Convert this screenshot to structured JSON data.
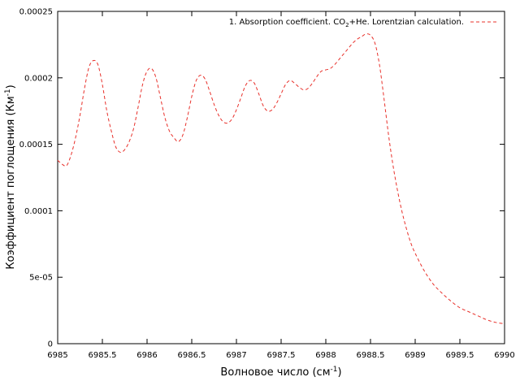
{
  "chart_data": {
    "type": "line",
    "title": "",
    "xlabel": "Волновое число (см",
    "xlabel_sup": "-1",
    "xlabel_tail": ")",
    "ylabel": "Коэффициент поглощения (Км",
    "ylabel_sup": "-1",
    "ylabel_tail": ")",
    "xlim": [
      6985,
      6990
    ],
    "ylim": [
      0,
      0.00025
    ],
    "xticks": [
      {
        "value": 6985,
        "label": "6985"
      },
      {
        "value": 6985.5,
        "label": "6985.5"
      },
      {
        "value": 6986,
        "label": "6986"
      },
      {
        "value": 6986.5,
        "label": "6986.5"
      },
      {
        "value": 6987,
        "label": "6987"
      },
      {
        "value": 6987.5,
        "label": "6987.5"
      },
      {
        "value": 6988,
        "label": "6988"
      },
      {
        "value": 6988.5,
        "label": "6988.5"
      },
      {
        "value": 6989,
        "label": "6989"
      },
      {
        "value": 6989.5,
        "label": "6989.5"
      },
      {
        "value": 6990,
        "label": "6990"
      }
    ],
    "yticks": [
      {
        "value": 0,
        "label": "0"
      },
      {
        "value": 5e-05,
        "label": "5e-05"
      },
      {
        "value": 0.0001,
        "label": "0.0001"
      },
      {
        "value": 0.00015,
        "label": "0.00015"
      },
      {
        "value": 0.0002,
        "label": "0.0002"
      },
      {
        "value": 0.00025,
        "label": "0.00025"
      }
    ],
    "grid": false,
    "legend_position": "top-right",
    "series": [
      {
        "name_prefix": "1. Absorption coefficient. CO",
        "name_sub": "2",
        "name_suffix": "+He. Lorentzian calculation.",
        "color": "#e8302a",
        "dash": "dashed",
        "x": [
          6985.0,
          6985.05,
          6985.1,
          6985.15,
          6985.2,
          6985.25,
          6985.3,
          6985.35,
          6985.4,
          6985.45,
          6985.5,
          6985.55,
          6985.6,
          6985.65,
          6985.7,
          6985.75,
          6985.8,
          6985.85,
          6985.9,
          6985.95,
          6986.0,
          6986.05,
          6986.1,
          6986.15,
          6986.2,
          6986.25,
          6986.3,
          6986.35,
          6986.4,
          6986.45,
          6986.5,
          6986.55,
          6986.6,
          6986.65,
          6986.7,
          6986.75,
          6986.8,
          6986.85,
          6986.9,
          6986.95,
          6987.0,
          6987.05,
          6987.1,
          6987.15,
          6987.2,
          6987.25,
          6987.3,
          6987.35,
          6987.4,
          6987.45,
          6987.5,
          6987.55,
          6987.6,
          6987.65,
          6987.7,
          6987.75,
          6987.8,
          6987.85,
          6987.9,
          6987.95,
          6988.0,
          6988.05,
          6988.1,
          6988.15,
          6988.2,
          6988.25,
          6988.3,
          6988.35,
          6988.4,
          6988.45,
          6988.5,
          6988.55,
          6988.6,
          6988.65,
          6988.7,
          6988.75,
          6988.8,
          6988.85,
          6988.9,
          6988.95,
          6989.0,
          6989.1,
          6989.2,
          6989.3,
          6989.4,
          6989.5,
          6989.6,
          6989.7,
          6989.8,
          6989.9,
          6990.0
        ],
        "y": [
          0.000138,
          0.000135,
          0.000134,
          0.000142,
          0.000155,
          0.000172,
          0.000192,
          0.000208,
          0.000213,
          0.00021,
          0.000195,
          0.000175,
          0.00016,
          0.000148,
          0.000144,
          0.000146,
          0.000152,
          0.000162,
          0.000178,
          0.000195,
          0.000205,
          0.000207,
          0.0002,
          0.000185,
          0.00017,
          0.00016,
          0.000155,
          0.000152,
          0.000157,
          0.00017,
          0.000186,
          0.000198,
          0.000202,
          0.000199,
          0.00019,
          0.00018,
          0.000172,
          0.000167,
          0.000166,
          0.000169,
          0.000176,
          0.000185,
          0.000194,
          0.000198,
          0.000196,
          0.000188,
          0.000179,
          0.000175,
          0.000176,
          0.000181,
          0.000188,
          0.000195,
          0.000198,
          0.000196,
          0.000193,
          0.000191,
          0.000192,
          0.000196,
          0.000201,
          0.000205,
          0.000206,
          0.000207,
          0.00021,
          0.000214,
          0.000218,
          0.000222,
          0.000226,
          0.000229,
          0.000231,
          0.000233,
          0.000232,
          0.000226,
          0.00021,
          0.000185,
          0.000158,
          0.000135,
          0.000116,
          0.0001,
          8.7e-05,
          7.6e-05,
          6.8e-05,
          5.5e-05,
          4.5e-05,
          3.8e-05,
          3.2e-05,
          2.7e-05,
          2.4e-05,
          2.1e-05,
          1.8e-05,
          1.6e-05,
          1.5e-05
        ]
      }
    ]
  }
}
